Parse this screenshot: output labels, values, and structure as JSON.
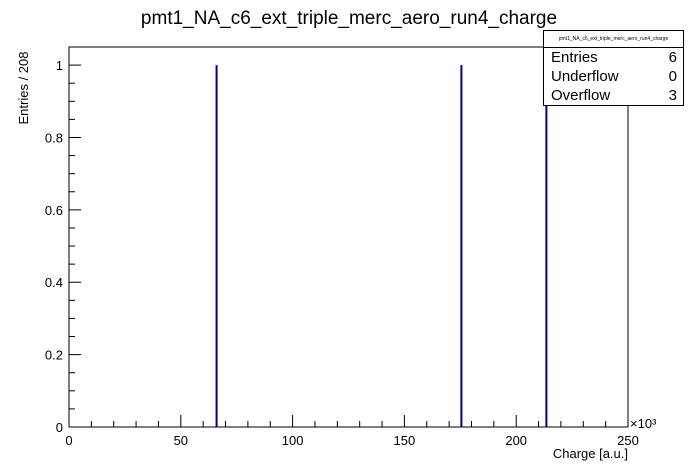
{
  "chart_data": {
    "type": "bar",
    "title": "pmt1_NA_c6_ext_triple_merc_aero_run4_charge",
    "xlabel": "Charge [a.u.]",
    "ylabel": "Entries / 208",
    "x_multiplier": "×10³",
    "xlim": [
      0,
      250000
    ],
    "ylim": [
      0,
      1.05
    ],
    "x_ticks": [
      "0",
      "50",
      "100",
      "150",
      "200",
      "250"
    ],
    "y_ticks": [
      "0",
      "0.2",
      "0.4",
      "0.6",
      "0.8",
      "1"
    ],
    "series": [
      {
        "x": [
          66000,
          175500,
          213500
        ],
        "values": [
          1,
          1,
          1
        ]
      }
    ],
    "grid": false,
    "color": "#000080"
  },
  "stats": {
    "title": "pmt1_NA_c6_ext_triple_merc_aero_run4_charge",
    "rows": [
      {
        "label": "Entries",
        "value": "6"
      },
      {
        "label": "Underflow",
        "value": "0"
      },
      {
        "label": "Overflow",
        "value": "3"
      }
    ]
  }
}
